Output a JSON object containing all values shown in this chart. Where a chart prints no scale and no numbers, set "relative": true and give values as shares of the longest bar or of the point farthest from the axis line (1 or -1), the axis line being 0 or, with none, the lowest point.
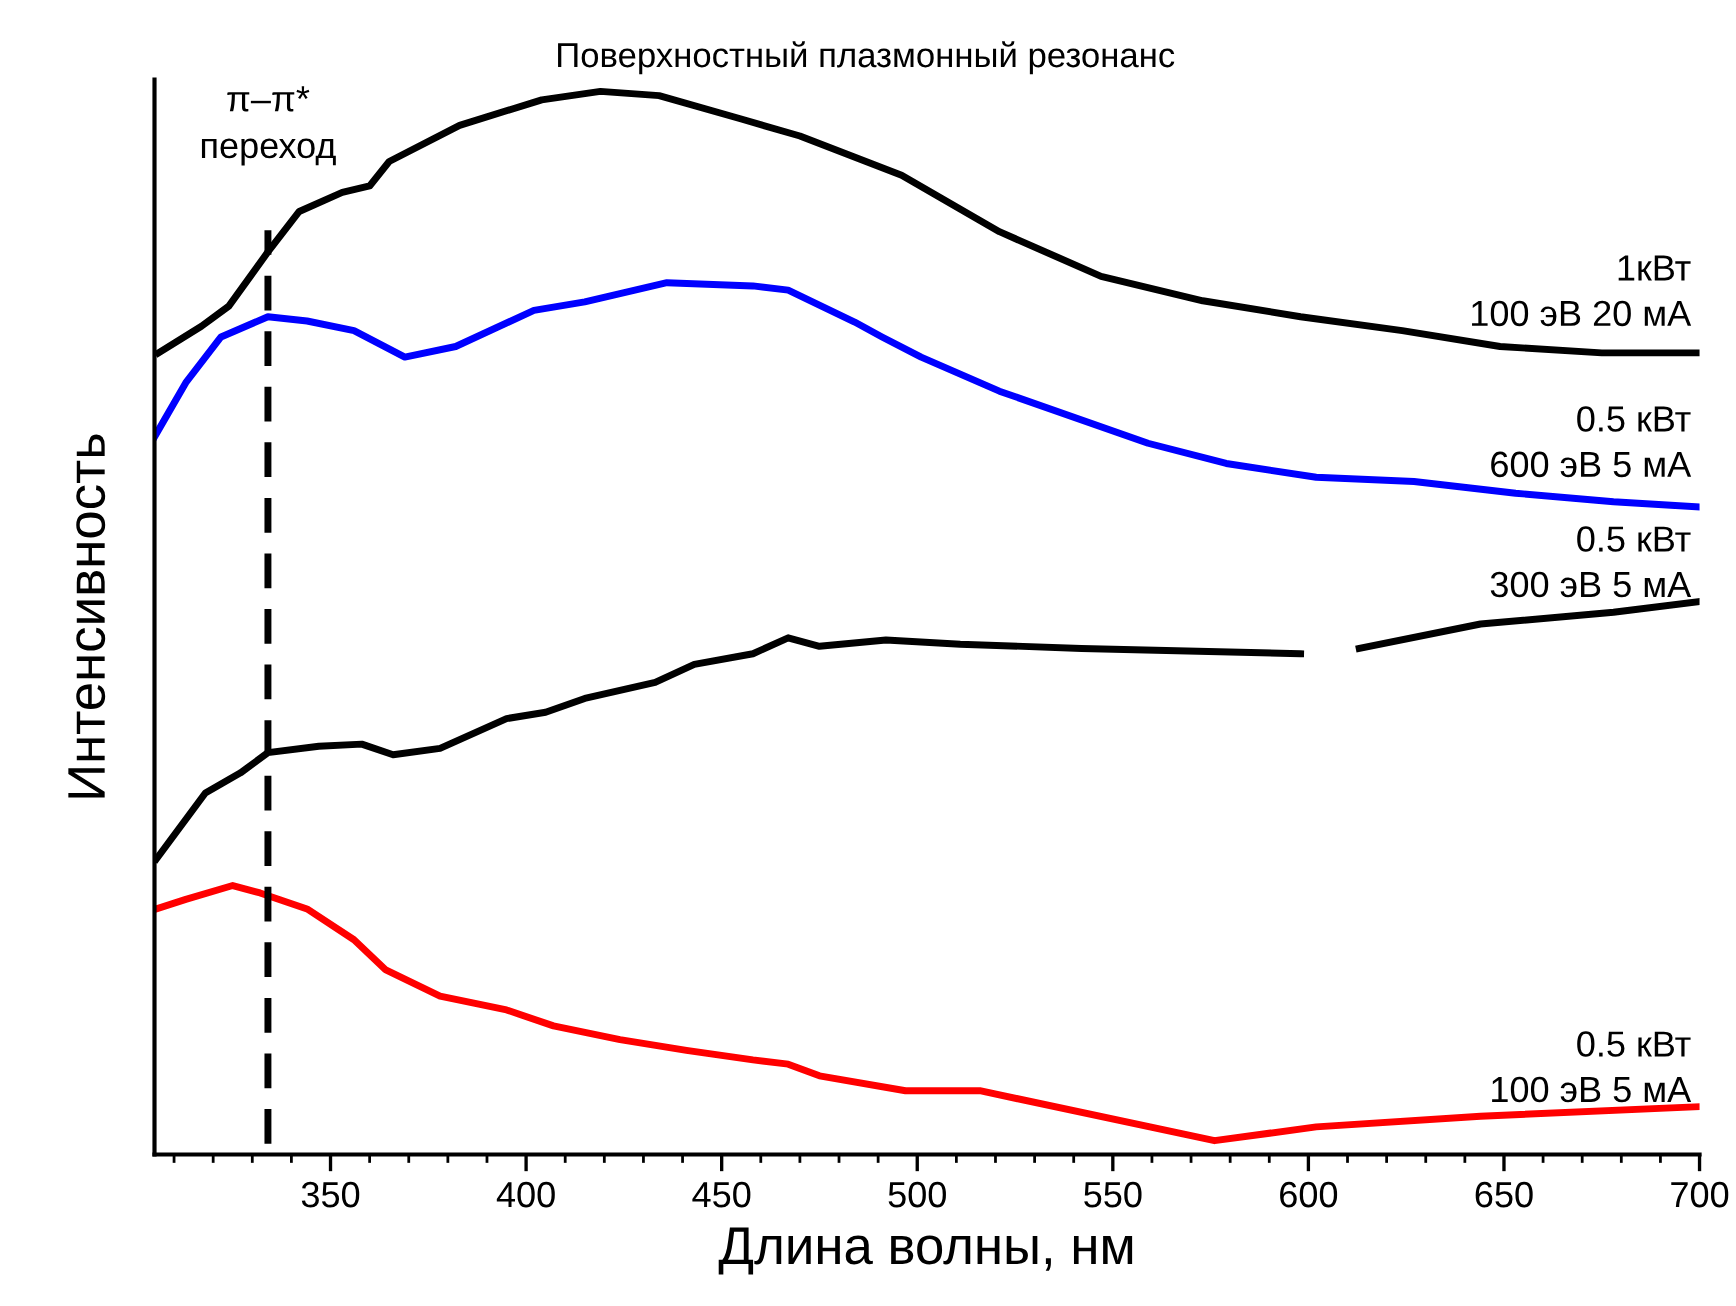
{
  "chart_data": {
    "type": "line",
    "title": "Поверхностный плазмонный резонанс",
    "xlabel": "Длина волны, нм",
    "ylabel": "Интенсивность",
    "relative": true,
    "xlim": [
      305,
      700
    ],
    "xticks": [
      350,
      400,
      450,
      500,
      550,
      600,
      650,
      700
    ],
    "grid": false,
    "legend": false,
    "line_style": "solid",
    "marker": "none",
    "ref_lines": [
      {
        "axis": "x",
        "value": 334,
        "label": "π–π*\nпереход",
        "color": "#000000",
        "line_style": "dashed"
      }
    ],
    "series": [
      {
        "name": "1кВт\n100 эВ 20 мА",
        "color": "#000000",
        "x": [
          306,
          317,
          324,
          334,
          342,
          353,
          360,
          365,
          383,
          404,
          419,
          434,
          455,
          470,
          496,
          521,
          547,
          573,
          598,
          624,
          649,
          675,
          700
        ],
        "values": [
          0.754,
          0.779,
          0.798,
          0.849,
          0.887,
          0.905,
          0.911,
          0.934,
          0.968,
          0.992,
          1.0,
          0.996,
          0.974,
          0.958,
          0.921,
          0.868,
          0.826,
          0.803,
          0.788,
          0.775,
          0.76,
          0.754,
          0.754
        ]
      },
      {
        "name": "0.5 кВт\n600 эВ 5 мА",
        "color": "#0000ff",
        "x": [
          305,
          313,
          322,
          334,
          344,
          356,
          369,
          382,
          402,
          415,
          436,
          458,
          467,
          484,
          491,
          501,
          521,
          559,
          579,
          602,
          627,
          653,
          678,
          700
        ],
        "values": [
          0.675,
          0.726,
          0.769,
          0.788,
          0.784,
          0.775,
          0.75,
          0.76,
          0.794,
          0.802,
          0.82,
          0.817,
          0.813,
          0.783,
          0.769,
          0.75,
          0.718,
          0.669,
          0.65,
          0.637,
          0.633,
          0.622,
          0.614,
          0.609
        ]
      },
      {
        "name": "0.5 кВт\n300 эВ 5 мА",
        "color": "#000000",
        "x": [
          305.5,
          318,
          327,
          334,
          347,
          358,
          366,
          378,
          395,
          405,
          415,
          433,
          443,
          458,
          467,
          475,
          492,
          511,
          542,
          598,
          600,
          613,
          644,
          678,
          700
        ],
        "values": [
          0.278,
          0.34,
          0.359,
          0.378,
          0.384,
          0.386,
          0.376,
          0.382,
          0.41,
          0.416,
          0.429,
          0.444,
          0.461,
          0.471,
          0.486,
          0.478,
          0.484,
          0.48,
          0.476,
          0.471,
          null,
          0.476,
          0.499,
          0.51,
          0.52
        ]
      },
      {
        "name": "0.5 кВт\n100 эВ 5 мА",
        "color": "#ff0000",
        "x": [
          305.5,
          313,
          325,
          332,
          344,
          356,
          364,
          378,
          395,
          407,
          424,
          441,
          458,
          467,
          475,
          497,
          516,
          576,
          602,
          644,
          700
        ],
        "values": [
          0.231,
          0.24,
          0.253,
          0.246,
          0.231,
          0.202,
          0.174,
          0.149,
          0.136,
          0.121,
          0.108,
          0.098,
          0.089,
          0.085,
          0.074,
          0.06,
          0.06,
          0.013,
          0.026,
          0.036,
          0.045
        ]
      }
    ]
  }
}
